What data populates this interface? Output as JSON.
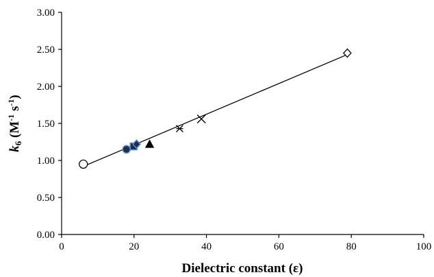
{
  "chart_data": {
    "type": "scatter",
    "title": "",
    "xlabel": "Dielectric constant (ε)",
    "ylabel": {
      "k": "k",
      "k_sub": "6",
      "unit_open": " (M",
      "unit_sup1": "-1",
      "unit_mid": " s",
      "unit_sup2": "-1",
      "unit_close": ")"
    },
    "xlim": [
      0,
      100
    ],
    "ylim": [
      0,
      3
    ],
    "xticks": [
      0,
      20,
      40,
      60,
      80,
      100
    ],
    "yticks": [
      0,
      0.5,
      1,
      1.5,
      2,
      2.5,
      3
    ],
    "xtick_labels": [
      "0",
      "20",
      "40",
      "60",
      "80",
      "100"
    ],
    "ytick_labels": [
      "0.00",
      "0.50",
      "1.00",
      "1.50",
      "2.00",
      "2.50",
      "3.00"
    ],
    "grid": false,
    "legend": "none",
    "points": [
      {
        "x": 6.0,
        "y": 0.95,
        "marker": "open-circle"
      },
      {
        "x": 17.9,
        "y": 1.15,
        "marker": "filled-circle"
      },
      {
        "x": 19.9,
        "y": 1.19,
        "marker": "filled-square"
      },
      {
        "x": 20.7,
        "y": 1.22,
        "marker": "filled-diamond"
      },
      {
        "x": 24.3,
        "y": 1.22,
        "marker": "filled-triangle"
      },
      {
        "x": 32.6,
        "y": 1.43,
        "marker": "x-star"
      },
      {
        "x": 38.6,
        "y": 1.56,
        "marker": "x-cross"
      },
      {
        "x": 78.9,
        "y": 2.45,
        "marker": "open-diamond"
      }
    ],
    "trendline": {
      "x_start": 6.0,
      "y_start": 0.92,
      "x_end": 78.9,
      "y_end": 2.43
    },
    "colors": {
      "axis": "#000000",
      "marker_fill": "#1f2d4a",
      "marker_edge": "#5b8ec9"
    }
  }
}
